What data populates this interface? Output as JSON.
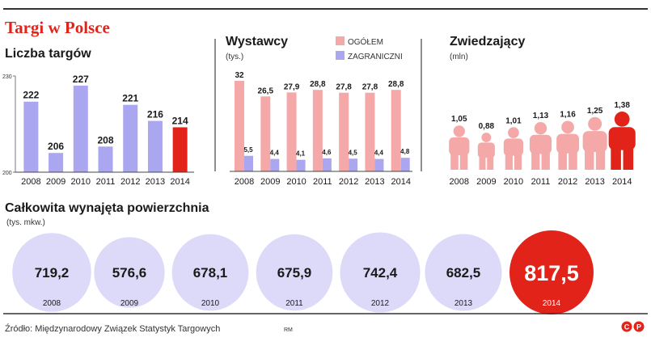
{
  "header": {
    "title": "Targi w Polsce",
    "accent": "#e2231a"
  },
  "source": {
    "text": "Źródło: Międzynarodowy Związek Statystyk Targowych",
    "author": "RM",
    "logo": "CP"
  },
  "chart_data": [
    {
      "id": "fairs",
      "type": "bar",
      "title": "Liczba targów",
      "categories": [
        "2008",
        "2009",
        "2010",
        "2011",
        "2012",
        "2013",
        "2014"
      ],
      "values": [
        222,
        206,
        227,
        208,
        221,
        216,
        214
      ],
      "value_labels": [
        "222",
        "206",
        "227",
        "208",
        "221",
        "216",
        "214"
      ],
      "ylim": [
        200,
        230
      ],
      "yticks": [
        "230",
        "200"
      ],
      "colors": {
        "normal": "#aaa6f0",
        "highlight": "#e2231a"
      }
    },
    {
      "id": "exhibitors",
      "type": "bar",
      "title": "Wystawcy",
      "unit": "(tys.)",
      "categories": [
        "2008",
        "2009",
        "2010",
        "2011",
        "2012",
        "2013",
        "2014"
      ],
      "series": [
        {
          "name": "OGÓŁEM",
          "values": [
            32,
            26.5,
            27.9,
            28.8,
            27.8,
            27.8,
            28.8
          ],
          "labels": [
            "32",
            "26,5",
            "27,9",
            "28,8",
            "27,8",
            "27,8",
            "28,8"
          ],
          "color": "#f4a9a8"
        },
        {
          "name": "ZAGRANICZNI",
          "values": [
            5.5,
            4.4,
            4.1,
            4.6,
            4.5,
            4.4,
            4.8
          ],
          "labels": [
            "5,5",
            "4,4",
            "4,1",
            "4,6",
            "4,5",
            "4,4",
            "4,8"
          ],
          "color": "#aaa6f0"
        }
      ],
      "ylim": [
        0,
        32
      ]
    },
    {
      "id": "visitors",
      "type": "bar",
      "title": "Zwiedzający",
      "unit": "(mln)",
      "categories": [
        "2008",
        "2009",
        "2010",
        "2011",
        "2012",
        "2013",
        "2014"
      ],
      "values": [
        1.05,
        0.88,
        1.01,
        1.13,
        1.16,
        1.25,
        1.38
      ],
      "value_labels": [
        "1,05",
        "0,88",
        "1,01",
        "1,13",
        "1,16",
        "1,25",
        "1,38"
      ],
      "colors": {
        "normal": "#f4a9a8",
        "highlight": "#e2231a"
      }
    },
    {
      "id": "area",
      "type": "bubble",
      "title": "Całkowita wynajęta powierzchnia",
      "unit": "(tys. mkw.)",
      "categories": [
        "2008",
        "2009",
        "2010",
        "2011",
        "2012",
        "2013",
        "2014"
      ],
      "values": [
        719.2,
        576.6,
        678.1,
        675.9,
        742.4,
        682.5,
        817.5
      ],
      "value_labels": [
        "719,2",
        "576,6",
        "678,1",
        "675,9",
        "742,4",
        "682,5",
        "817,5"
      ],
      "colors": {
        "normal": "#dcdaf8",
        "highlight": "#e2231a"
      }
    }
  ]
}
